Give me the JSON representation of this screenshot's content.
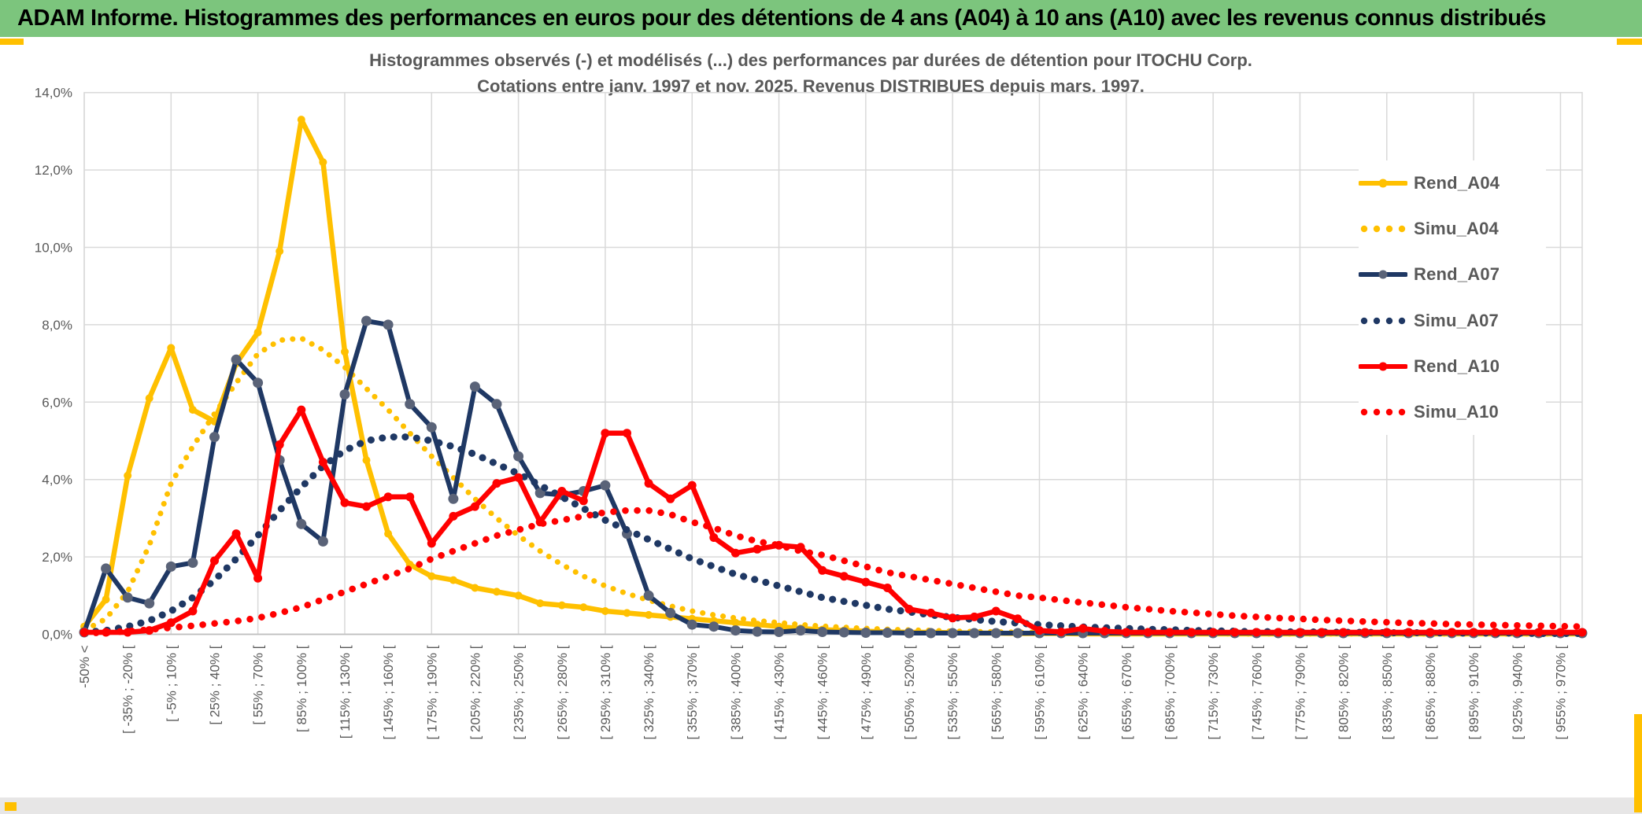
{
  "colors": {
    "banner_green": "#7CC57D",
    "accent_gold": "#FFC000",
    "text_gray": "#595959",
    "gridline": "#D9D9D9",
    "axis_line": "#BFBFBF",
    "series_yellow": "#FFC000",
    "series_navy": "#1F3864",
    "series_navy_marker": "#5A6378",
    "series_red": "#FF0000"
  },
  "header": {
    "title": "ADAM Informe. Histogrammes des performances en euros pour des détentions de 4 ans (A04) à 10 ans (A10) avec les revenus connus distribués"
  },
  "chart": {
    "title_line1": "Histogrammes observés (-) et modélisés (...) des performances par durées de détention pour ITOCHU Corp.",
    "title_line2": "Cotations entre janv. 1997 et nov. 2025. Revenus DISTRIBUES depuis mars. 1997."
  },
  "chart_data": {
    "type": "line",
    "n_points": 70,
    "x_labels_every_other_bin": true,
    "ylim": [
      0,
      14
    ],
    "grid": true,
    "legend_position": "right",
    "y_ticks": [
      "0,0%",
      "2,0%",
      "4,0%",
      "6,0%",
      "8,0%",
      "10,0%",
      "12,0%",
      "14,0%"
    ],
    "x_tick_labels": [
      "-50% <",
      "[ -35% ; -20% [",
      "[ -5% ; 10% [",
      "[ 25% ; 40% [",
      "[ 55% ; 70% [",
      "[ 85% ; 100% [",
      "[ 115% ; 130% [",
      "[ 145% ; 160% [",
      "[ 175% ; 190% [",
      "[ 205% ; 220% [",
      "[ 235% ; 250% [",
      "[ 265% ; 280% [",
      "[ 295% ; 310% [",
      "[ 325% ; 340% [",
      "[ 355% ; 370% [",
      "[ 385% ; 400% [",
      "[ 415% ; 430% [",
      "[ 445% ; 460% [",
      "[ 475% ; 490% [",
      "[ 505% ; 520% [",
      "[ 535% ; 550% [",
      "[ 565% ; 580% [",
      "[ 595% ; 610% [",
      "[ 625% ; 640% [",
      "[ 655% ; 670% [",
      "[ 685% ; 700% [",
      "[ 715% ; 730% [",
      "[ 745% ; 760% [",
      "[ 775% ; 790% [",
      "[ 805% ; 820% [",
      "[ 835% ; 850% [",
      "[ 865% ; 880% [",
      "[ 895% ; 910% [",
      "[ 925% ; 940% [",
      "[ 955% ; 970% ["
    ],
    "series": [
      {
        "name": "Rend_A04",
        "color": "#FFC000",
        "style": "solid",
        "marker": true,
        "marker_color": "#FFC000",
        "values": [
          0.2,
          0.9,
          4.1,
          6.1,
          7.4,
          5.8,
          5.5,
          7.0,
          7.8,
          9.9,
          13.3,
          12.2,
          7.3,
          4.5,
          2.6,
          1.8,
          1.5,
          1.4,
          1.2,
          1.1,
          1.0,
          0.8,
          0.75,
          0.7,
          0.6,
          0.55,
          0.5,
          0.45,
          0.4,
          0.35,
          0.3,
          0.25,
          0.2,
          0.15,
          0.12,
          0.1,
          0.08,
          0.06,
          0.05,
          0.05,
          0.04,
          0.03,
          0.03,
          0.02,
          0.02,
          0.02,
          0.01,
          0.01,
          0.01,
          0.01,
          0.01,
          0.01,
          0.01,
          0.01,
          0.01,
          0.01,
          0.01,
          0.01,
          0.01,
          0.01,
          0.01,
          0.01,
          0.01,
          0.01,
          0.01,
          0.01,
          0.01,
          0.01,
          0.01,
          0.01
        ]
      },
      {
        "name": "Simu_A04",
        "color": "#FFC000",
        "style": "dotted",
        "marker": false,
        "values": [
          0.1,
          0.4,
          1.1,
          2.3,
          3.9,
          4.85,
          5.7,
          6.5,
          7.25,
          7.6,
          7.65,
          7.35,
          6.9,
          6.35,
          5.8,
          5.2,
          4.6,
          4.05,
          3.5,
          3.0,
          2.55,
          2.15,
          1.8,
          1.5,
          1.25,
          1.05,
          0.88,
          0.73,
          0.6,
          0.5,
          0.42,
          0.35,
          0.3,
          0.25,
          0.21,
          0.18,
          0.15,
          0.13,
          0.11,
          0.1,
          0.08,
          0.07,
          0.06,
          0.05,
          0.05,
          0.04,
          0.04,
          0.03,
          0.03,
          0.02,
          0.02,
          0.02,
          0.02,
          0.01,
          0.01,
          0.01,
          0.01,
          0.01,
          0.01,
          0.01,
          0.01,
          0.01,
          0.01,
          0.01,
          0.01,
          0.01,
          0.01,
          0.01,
          0.01,
          0.01
        ]
      },
      {
        "name": "Rend_A07",
        "color": "#1F3864",
        "style": "solid",
        "marker": true,
        "marker_color": "#5A6378",
        "values": [
          0.05,
          1.7,
          0.95,
          0.8,
          1.75,
          1.85,
          5.1,
          7.1,
          6.5,
          4.5,
          2.85,
          2.4,
          6.2,
          8.1,
          8.0,
          5.95,
          5.35,
          3.5,
          6.4,
          5.95,
          4.6,
          3.65,
          3.6,
          3.7,
          3.85,
          2.6,
          1.0,
          0.55,
          0.25,
          0.2,
          0.1,
          0.07,
          0.06,
          0.1,
          0.06,
          0.05,
          0.04,
          0.04,
          0.03,
          0.03,
          0.03,
          0.03,
          0.03,
          0.03,
          0.03,
          0.03,
          0.03,
          0.03,
          0.03,
          0.03,
          0.03,
          0.03,
          0.03,
          0.03,
          0.03,
          0.03,
          0.03,
          0.03,
          0.03,
          0.03,
          0.03,
          0.03,
          0.03,
          0.03,
          0.03,
          0.03,
          0.03,
          0.03,
          0.03,
          0.03
        ]
      },
      {
        "name": "Simu_A07",
        "color": "#1F3864",
        "style": "dotted",
        "marker": false,
        "values": [
          0.05,
          0.1,
          0.2,
          0.35,
          0.6,
          0.95,
          1.4,
          1.95,
          2.55,
          3.2,
          3.8,
          4.35,
          4.75,
          5.0,
          5.1,
          5.1,
          5.0,
          4.85,
          4.65,
          4.4,
          4.15,
          3.85,
          3.55,
          3.25,
          2.95,
          2.7,
          2.45,
          2.2,
          1.95,
          1.75,
          1.55,
          1.4,
          1.25,
          1.1,
          0.95,
          0.85,
          0.75,
          0.65,
          0.58,
          0.5,
          0.44,
          0.38,
          0.33,
          0.29,
          0.25,
          0.22,
          0.19,
          0.17,
          0.15,
          0.13,
          0.12,
          0.1,
          0.09,
          0.08,
          0.07,
          0.07,
          0.06,
          0.06,
          0.05,
          0.05,
          0.04,
          0.04,
          0.04,
          0.03,
          0.03,
          0.03,
          0.03,
          0.02,
          0.02,
          0.02
        ]
      },
      {
        "name": "Rend_A10",
        "color": "#FF0000",
        "style": "solid",
        "marker": true,
        "marker_color": "#FF0000",
        "values": [
          0.05,
          0.05,
          0.05,
          0.1,
          0.3,
          0.6,
          1.9,
          2.6,
          1.45,
          4.9,
          5.8,
          4.45,
          3.4,
          3.3,
          3.55,
          3.55,
          2.35,
          3.05,
          3.3,
          3.9,
          4.05,
          2.9,
          3.7,
          3.45,
          5.2,
          5.2,
          3.9,
          3.5,
          3.85,
          2.5,
          2.1,
          2.2,
          2.3,
          2.25,
          1.65,
          1.5,
          1.35,
          1.2,
          0.65,
          0.55,
          0.42,
          0.45,
          0.6,
          0.4,
          0.1,
          0.06,
          0.15,
          0.08,
          0.05,
          0.05,
          0.05,
          0.05,
          0.05,
          0.05,
          0.05,
          0.05,
          0.05,
          0.05,
          0.05,
          0.05,
          0.05,
          0.05,
          0.05,
          0.05,
          0.05,
          0.05,
          0.05,
          0.05,
          0.05,
          0.05
        ]
      },
      {
        "name": "Simu_A10",
        "color": "#FF0000",
        "style": "dotted",
        "marker": false,
        "values": [
          0.02,
          0.05,
          0.08,
          0.12,
          0.17,
          0.22,
          0.28,
          0.34,
          0.42,
          0.55,
          0.7,
          0.9,
          1.1,
          1.3,
          1.5,
          1.7,
          1.95,
          2.15,
          2.35,
          2.55,
          2.7,
          2.85,
          2.95,
          3.05,
          3.15,
          3.2,
          3.2,
          3.1,
          2.9,
          2.75,
          2.55,
          2.4,
          2.3,
          2.15,
          2.05,
          1.9,
          1.75,
          1.6,
          1.5,
          1.4,
          1.3,
          1.2,
          1.1,
          1.0,
          0.95,
          0.88,
          0.82,
          0.76,
          0.7,
          0.65,
          0.6,
          0.56,
          0.52,
          0.48,
          0.45,
          0.42,
          0.4,
          0.37,
          0.35,
          0.33,
          0.31,
          0.29,
          0.28,
          0.26,
          0.25,
          0.24,
          0.23,
          0.22,
          0.21,
          0.2
        ]
      }
    ]
  }
}
